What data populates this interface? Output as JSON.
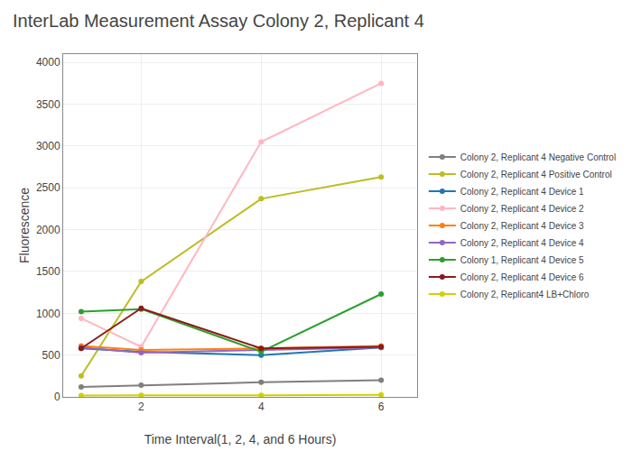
{
  "chart_data": {
    "type": "line",
    "title": "InterLab Measurement Assay Colony 2, Replicant 4",
    "xlabel": "Time Interval(1, 2, 4, and 6 Hours)",
    "ylabel": "Fluorescence",
    "x": [
      1,
      2,
      4,
      6
    ],
    "series": [
      {
        "name": "Colony 2, Replicant 4 Negative Control",
        "color": "#7f7f7f",
        "values": [
          120,
          140,
          175,
          200
        ]
      },
      {
        "name": "Colony 2, Replicant 4 Positive Control",
        "color": "#bcbd22",
        "values": [
          250,
          1380,
          2370,
          2630
        ]
      },
      {
        "name": "Colony 2, Replicant 4 Device 1",
        "color": "#1f77b4",
        "values": [
          580,
          540,
          500,
          590
        ]
      },
      {
        "name": "Colony 2, Replicant 4 Device 2",
        "color": "#ffb6c1",
        "values": [
          940,
          600,
          3050,
          3750
        ]
      },
      {
        "name": "Colony 2, Replicant 4 Device 3",
        "color": "#ff7f0e",
        "values": [
          610,
          560,
          580,
          610
        ]
      },
      {
        "name": "Colony 2, Replicant 4 Device 4",
        "color": "#9467bd",
        "values": [
          590,
          530,
          560,
          590
        ]
      },
      {
        "name": "Colony 1, Replicant 4 Device 5",
        "color": "#2ca02c",
        "values": [
          1020,
          1050,
          540,
          1230
        ]
      },
      {
        "name": "Colony 2, Replicant 4 Device 6",
        "color": "#8b1a1a",
        "values": [
          580,
          1060,
          580,
          600
        ]
      },
      {
        "name": "Colony 2, Replicant4 LB+Chloro",
        "color": "#d4cf00",
        "values": [
          15,
          20,
          18,
          25
        ]
      }
    ],
    "xlim": [
      0.7,
      6.6
    ],
    "xticks": [
      2,
      4,
      6
    ],
    "ylim": [
      0,
      4100
    ],
    "yticks": [
      0,
      500,
      1000,
      1500,
      2000,
      2500,
      3000,
      3500,
      4000
    ],
    "marker": "circle",
    "grid": true,
    "legend": "right"
  }
}
